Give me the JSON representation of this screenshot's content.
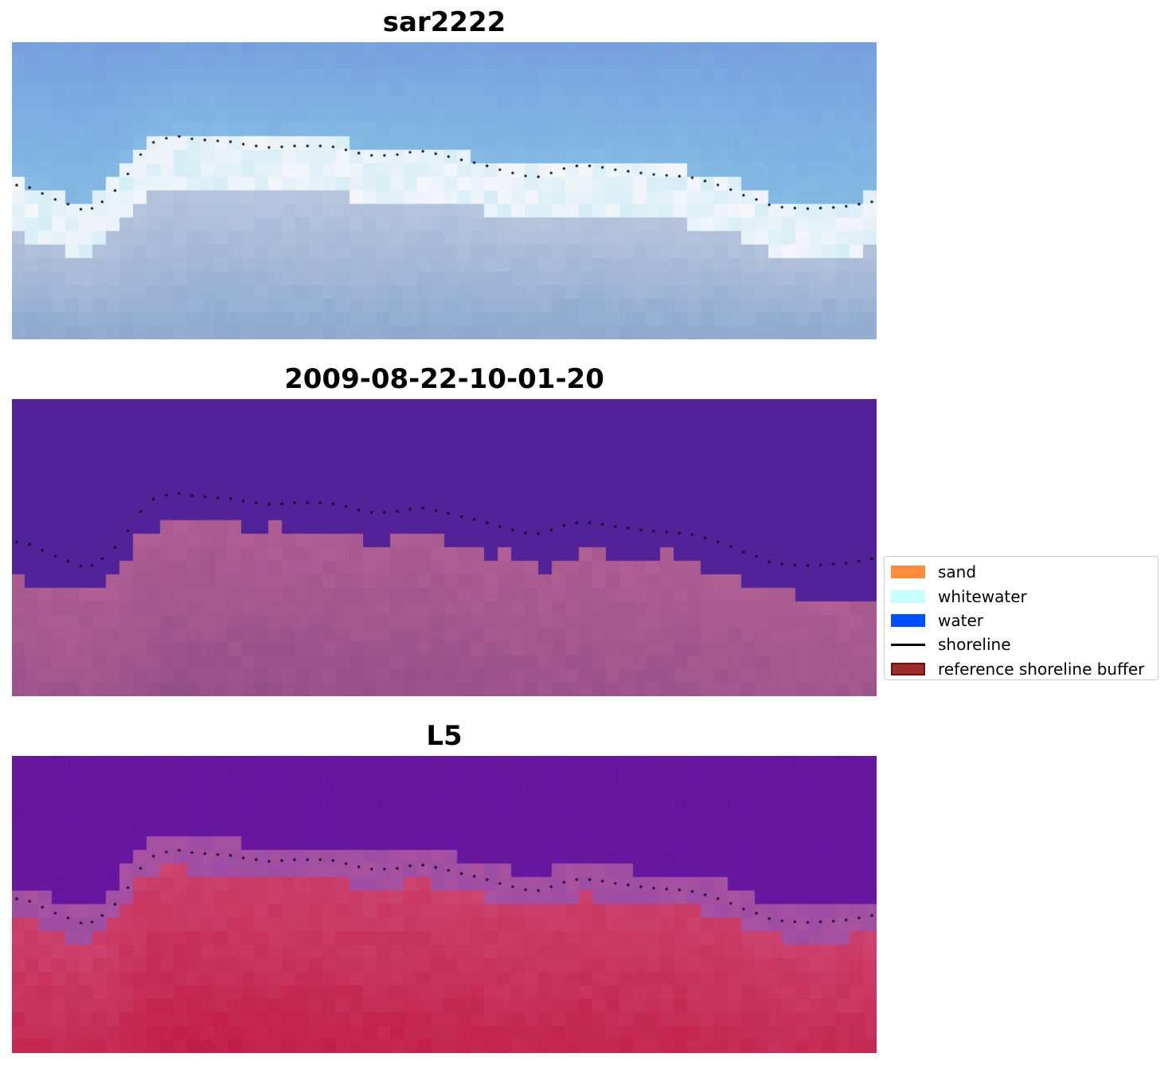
{
  "panels": [
    {
      "title": "sar2222",
      "kind": "rgb"
    },
    {
      "title": "2009-08-22-10-01-20",
      "kind": "classified"
    },
    {
      "title": "L5",
      "kind": "ndwi"
    }
  ],
  "colors": {
    "sand": "#ff8c3c",
    "whitewater": "#c8ffff",
    "water": "#0050ff",
    "shoreline": "#000000",
    "buffer_fill": "#9a2c2c",
    "buffer_edge": "#6e1010",
    "class_water_overlay": "#52229a",
    "class_land_overlay": "#a4508a",
    "ndwi_water": "#5a1696",
    "ndwi_land": "#c0163c"
  },
  "legend": {
    "items": [
      {
        "label": "sand",
        "type": "patch",
        "icon": "square-patch"
      },
      {
        "label": "whitewater",
        "type": "patch",
        "icon": "square-patch"
      },
      {
        "label": "water",
        "type": "patch",
        "icon": "square-patch"
      },
      {
        "label": "shoreline",
        "type": "line",
        "icon": "line"
      },
      {
        "label": "reference shoreline buffer",
        "type": "patch",
        "icon": "square-patch"
      }
    ]
  },
  "shoreline_trace": [
    [
      0.0,
      0.481
    ],
    [
      0.015,
      0.489
    ],
    [
      0.03,
      0.509
    ],
    [
      0.045,
      0.529
    ],
    [
      0.06,
      0.545
    ],
    [
      0.075,
      0.562
    ],
    [
      0.088,
      0.559
    ],
    [
      0.1,
      0.537
    ],
    [
      0.115,
      0.499
    ],
    [
      0.13,
      0.443
    ],
    [
      0.145,
      0.378
    ],
    [
      0.16,
      0.337
    ],
    [
      0.175,
      0.323
    ],
    [
      0.19,
      0.317
    ],
    [
      0.205,
      0.325
    ],
    [
      0.22,
      0.329
    ],
    [
      0.235,
      0.332
    ],
    [
      0.25,
      0.335
    ],
    [
      0.265,
      0.343
    ],
    [
      0.28,
      0.349
    ],
    [
      0.295,
      0.354
    ],
    [
      0.31,
      0.352
    ],
    [
      0.325,
      0.349
    ],
    [
      0.34,
      0.349
    ],
    [
      0.355,
      0.349
    ],
    [
      0.37,
      0.352
    ],
    [
      0.385,
      0.362
    ],
    [
      0.4,
      0.373
    ],
    [
      0.415,
      0.381
    ],
    [
      0.43,
      0.381
    ],
    [
      0.445,
      0.378
    ],
    [
      0.46,
      0.37
    ],
    [
      0.475,
      0.367
    ],
    [
      0.49,
      0.375
    ],
    [
      0.505,
      0.385
    ],
    [
      0.52,
      0.396
    ],
    [
      0.535,
      0.405
    ],
    [
      0.55,
      0.416
    ],
    [
      0.565,
      0.429
    ],
    [
      0.58,
      0.44
    ],
    [
      0.595,
      0.45
    ],
    [
      0.61,
      0.453
    ],
    [
      0.625,
      0.44
    ],
    [
      0.64,
      0.425
    ],
    [
      0.655,
      0.416
    ],
    [
      0.67,
      0.416
    ],
    [
      0.685,
      0.421
    ],
    [
      0.7,
      0.429
    ],
    [
      0.715,
      0.434
    ],
    [
      0.73,
      0.44
    ],
    [
      0.745,
      0.445
    ],
    [
      0.76,
      0.448
    ],
    [
      0.775,
      0.451
    ],
    [
      0.79,
      0.456
    ],
    [
      0.805,
      0.467
    ],
    [
      0.82,
      0.48
    ],
    [
      0.835,
      0.496
    ],
    [
      0.85,
      0.515
    ],
    [
      0.865,
      0.529
    ],
    [
      0.88,
      0.547
    ],
    [
      0.895,
      0.555
    ],
    [
      0.91,
      0.558
    ],
    [
      0.925,
      0.56
    ],
    [
      0.94,
      0.558
    ],
    [
      0.955,
      0.556
    ],
    [
      0.97,
      0.552
    ],
    [
      0.985,
      0.545
    ],
    [
      1.0,
      0.537
    ]
  ]
}
